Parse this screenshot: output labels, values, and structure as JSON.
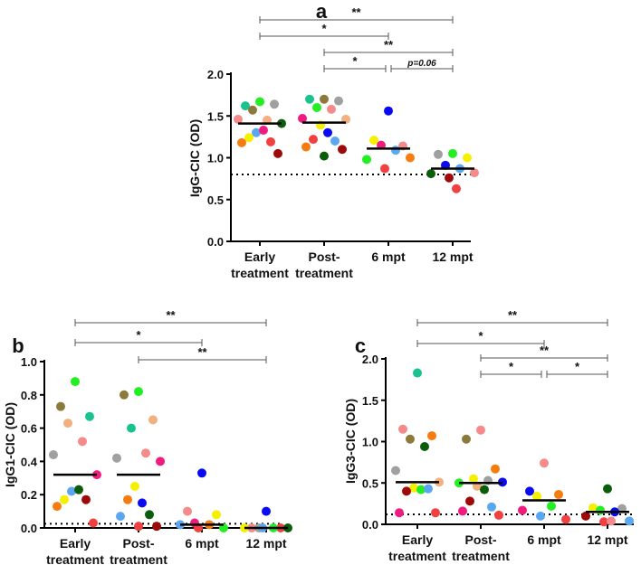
{
  "colors": {
    "green": "#22ee22",
    "teal": "#19c28f",
    "grey": "#a0a0a0",
    "olive": "#8c7a3c",
    "peach": "#f2b080",
    "salmon": "#f58a8a",
    "darkgreen": "#0b5d0b",
    "lightblue": "#5aa7f0",
    "magenta": "#ee1c7e",
    "yellow": "#f5f000",
    "red": "#f04040",
    "orange": "#f57c10",
    "darkred": "#9c0a0a",
    "blue": "#0a0af0"
  },
  "chart_data": [
    {
      "panel": "a",
      "type": "scatter",
      "ylabel": "IgG-CIC (OD)",
      "ylim": [
        0,
        2.0
      ],
      "yticks": [
        "0.0",
        "0.5",
        "1.0",
        "1.5",
        "2.0"
      ],
      "yticks_values": [
        0,
        0.5,
        1,
        1.5,
        2
      ],
      "categories": [
        "Early treatment",
        "Post-treatment",
        "6 mpt",
        "12 mpt"
      ],
      "category_lines": [
        [
          "Early",
          "treatment"
        ],
        [
          "Post-",
          "treatment"
        ],
        [
          "6 mpt",
          ""
        ],
        [
          "12 mpt",
          ""
        ]
      ],
      "threshold": 0.8,
      "medians": [
        1.41,
        1.42,
        1.11,
        0.87
      ],
      "points": [
        [
          [
            1.67,
            "green"
          ],
          [
            1.62,
            "teal"
          ],
          [
            1.64,
            "grey"
          ],
          [
            1.57,
            "olive"
          ],
          [
            1.45,
            "peach"
          ],
          [
            1.46,
            "salmon"
          ],
          [
            1.41,
            "darkgreen"
          ],
          [
            1.3,
            "lightblue"
          ],
          [
            1.33,
            "magenta"
          ],
          [
            1.24,
            "yellow"
          ],
          [
            1.19,
            "red"
          ],
          [
            1.18,
            "orange"
          ],
          [
            1.05,
            "darkred"
          ]
        ],
        [
          [
            1.7,
            "olive"
          ],
          [
            1.7,
            "teal"
          ],
          [
            1.68,
            "grey"
          ],
          [
            1.6,
            "green"
          ],
          [
            1.58,
            "salmon"
          ],
          [
            1.47,
            "magenta"
          ],
          [
            1.46,
            "peach"
          ],
          [
            1.39,
            "yellow"
          ],
          [
            1.3,
            "blue"
          ],
          [
            1.22,
            "red"
          ],
          [
            1.2,
            "lightblue"
          ],
          [
            1.13,
            "orange"
          ],
          [
            1.1,
            "darkred"
          ],
          [
            1.02,
            "darkgreen"
          ]
        ],
        [
          [
            1.56,
            "blue"
          ],
          [
            1.21,
            "yellow"
          ],
          [
            1.14,
            "salmon"
          ],
          [
            1.15,
            "magenta"
          ],
          [
            1.09,
            "lightblue"
          ],
          [
            0.98,
            "green"
          ],
          [
            1.0,
            "orange"
          ],
          [
            0.87,
            "red"
          ]
        ],
        [
          [
            1.05,
            "green"
          ],
          [
            1.04,
            "grey"
          ],
          [
            1.0,
            "yellow"
          ],
          [
            0.91,
            "blue"
          ],
          [
            0.87,
            "lightblue"
          ],
          [
            0.81,
            "darkgreen"
          ],
          [
            0.82,
            "salmon"
          ],
          [
            0.76,
            "darkred"
          ],
          [
            0.63,
            "red"
          ]
        ]
      ],
      "comparisons": [
        {
          "from": 0,
          "to": 3,
          "label": "**"
        },
        {
          "from": 0,
          "to": 2,
          "label": "*"
        },
        {
          "from": 1,
          "to": 3,
          "label": "**"
        },
        {
          "from": 1,
          "to": 2,
          "label": "*"
        },
        {
          "from": 2,
          "to": 3,
          "label": "p=0.06"
        }
      ]
    },
    {
      "panel": "b",
      "type": "scatter",
      "ylabel": "IgG1-CIC (OD)",
      "ylim": [
        0,
        1.0
      ],
      "yticks": [
        "0.0",
        "0.2",
        "0.4",
        "0.6",
        "0.8",
        "1.0"
      ],
      "yticks_values": [
        0,
        0.2,
        0.4,
        0.6,
        0.8,
        1.0
      ],
      "categories": [
        "Early treatment",
        "Post-treatment",
        "6 mpt",
        "12 mpt"
      ],
      "category_lines": [
        [
          "Early",
          "treatment"
        ],
        [
          "Post-",
          "treatment"
        ],
        [
          "6 mpt",
          ""
        ],
        [
          "12 mpt",
          ""
        ]
      ],
      "threshold": 0.025,
      "medians": [
        0.32,
        0.32,
        0.02,
        0.0
      ],
      "points": [
        [
          [
            0.88,
            "green"
          ],
          [
            0.73,
            "olive"
          ],
          [
            0.67,
            "teal"
          ],
          [
            0.63,
            "peach"
          ],
          [
            0.52,
            "salmon"
          ],
          [
            0.44,
            "grey"
          ],
          [
            0.32,
            "magenta"
          ],
          [
            0.22,
            "lightblue"
          ],
          [
            0.23,
            "darkgreen"
          ],
          [
            0.17,
            "yellow"
          ],
          [
            0.17,
            "darkred"
          ],
          [
            0.13,
            "orange"
          ],
          [
            0.03,
            "red"
          ]
        ],
        [
          [
            0.82,
            "green"
          ],
          [
            0.8,
            "olive"
          ],
          [
            0.65,
            "peach"
          ],
          [
            0.6,
            "teal"
          ],
          [
            0.45,
            "salmon"
          ],
          [
            0.42,
            "grey"
          ],
          [
            0.4,
            "magenta"
          ],
          [
            0.25,
            "yellow"
          ],
          [
            0.15,
            "blue"
          ],
          [
            0.17,
            "orange"
          ],
          [
            0.08,
            "darkgreen"
          ],
          [
            0.07,
            "lightblue"
          ],
          [
            0.01,
            "darkred"
          ],
          [
            0.01,
            "red"
          ]
        ],
        [
          [
            0.33,
            "blue"
          ],
          [
            0.1,
            "salmon"
          ],
          [
            0.08,
            "yellow"
          ],
          [
            0.03,
            "magenta"
          ],
          [
            0.02,
            "orange"
          ],
          [
            0.02,
            "lightblue"
          ],
          [
            0.0,
            "green"
          ],
          [
            0.0,
            "red"
          ]
        ],
        [
          [
            0.1,
            "blue"
          ],
          [
            0.0,
            "salmon"
          ],
          [
            0.0,
            "red"
          ],
          [
            0.0,
            "grey"
          ],
          [
            0.0,
            "green"
          ],
          [
            0.0,
            "yellow"
          ],
          [
            0.0,
            "darkgreen"
          ],
          [
            0.0,
            "lightblue"
          ]
        ]
      ],
      "comparisons": [
        {
          "from": 0,
          "to": 3,
          "label": "**"
        },
        {
          "from": 0,
          "to": 2,
          "label": "*"
        },
        {
          "from": 1,
          "to": 3,
          "label": "**"
        }
      ]
    },
    {
      "panel": "c",
      "type": "scatter",
      "ylabel": "IgG3-CIC (OD)",
      "ylim": [
        0,
        2.0
      ],
      "yticks": [
        "0.0",
        "0.5",
        "1.0",
        "1.5",
        "2.0"
      ],
      "yticks_values": [
        0,
        0.5,
        1,
        1.5,
        2
      ],
      "categories": [
        "Early treatment",
        "Post-treatment",
        "6 mpt",
        "12 mpt"
      ],
      "category_lines": [
        [
          "Early",
          "treatment"
        ],
        [
          "Post-",
          "treatment"
        ],
        [
          "6 mpt",
          ""
        ],
        [
          "12 mpt",
          ""
        ]
      ],
      "threshold": 0.12,
      "medians": [
        0.51,
        0.5,
        0.29,
        0.15
      ],
      "points": [
        [
          [
            1.83,
            "teal"
          ],
          [
            1.15,
            "salmon"
          ],
          [
            1.07,
            "orange"
          ],
          [
            1.03,
            "olive"
          ],
          [
            0.94,
            "darkgreen"
          ],
          [
            0.65,
            "grey"
          ],
          [
            0.51,
            "peach"
          ],
          [
            0.44,
            "yellow"
          ],
          [
            0.42,
            "green"
          ],
          [
            0.4,
            "darkred"
          ],
          [
            0.43,
            "lightblue"
          ],
          [
            0.14,
            "magenta"
          ],
          [
            0.14,
            "red"
          ]
        ],
        [
          [
            1.14,
            "salmon"
          ],
          [
            1.03,
            "olive"
          ],
          [
            0.67,
            "orange"
          ],
          [
            0.55,
            "yellow"
          ],
          [
            0.53,
            "grey"
          ],
          [
            0.5,
            "green"
          ],
          [
            0.51,
            "blue"
          ],
          [
            0.46,
            "peach"
          ],
          [
            0.42,
            "darkgreen"
          ],
          [
            0.28,
            "darkred"
          ],
          [
            0.21,
            "lightblue"
          ],
          [
            0.16,
            "magenta"
          ],
          [
            0.11,
            "red"
          ]
        ],
        [
          [
            0.74,
            "salmon"
          ],
          [
            0.4,
            "blue"
          ],
          [
            0.36,
            "orange"
          ],
          [
            0.34,
            "yellow"
          ],
          [
            0.22,
            "green"
          ],
          [
            0.17,
            "magenta"
          ],
          [
            0.06,
            "red"
          ],
          [
            0.1,
            "lightblue"
          ]
        ],
        [
          [
            0.43,
            "darkgreen"
          ],
          [
            0.2,
            "yellow"
          ],
          [
            0.19,
            "grey"
          ],
          [
            0.17,
            "green"
          ],
          [
            0.15,
            "blue"
          ],
          [
            0.1,
            "darkred"
          ],
          [
            0.04,
            "lightblue"
          ],
          [
            0.03,
            "red"
          ],
          [
            0.04,
            "salmon"
          ]
        ]
      ],
      "comparisons": [
        {
          "from": 0,
          "to": 3,
          "label": "**"
        },
        {
          "from": 0,
          "to": 2,
          "label": "*"
        },
        {
          "from": 1,
          "to": 3,
          "label": "**"
        },
        {
          "from": 1,
          "to": 2,
          "label": "*"
        },
        {
          "from": 2,
          "to": 3,
          "label": "*"
        }
      ]
    }
  ]
}
